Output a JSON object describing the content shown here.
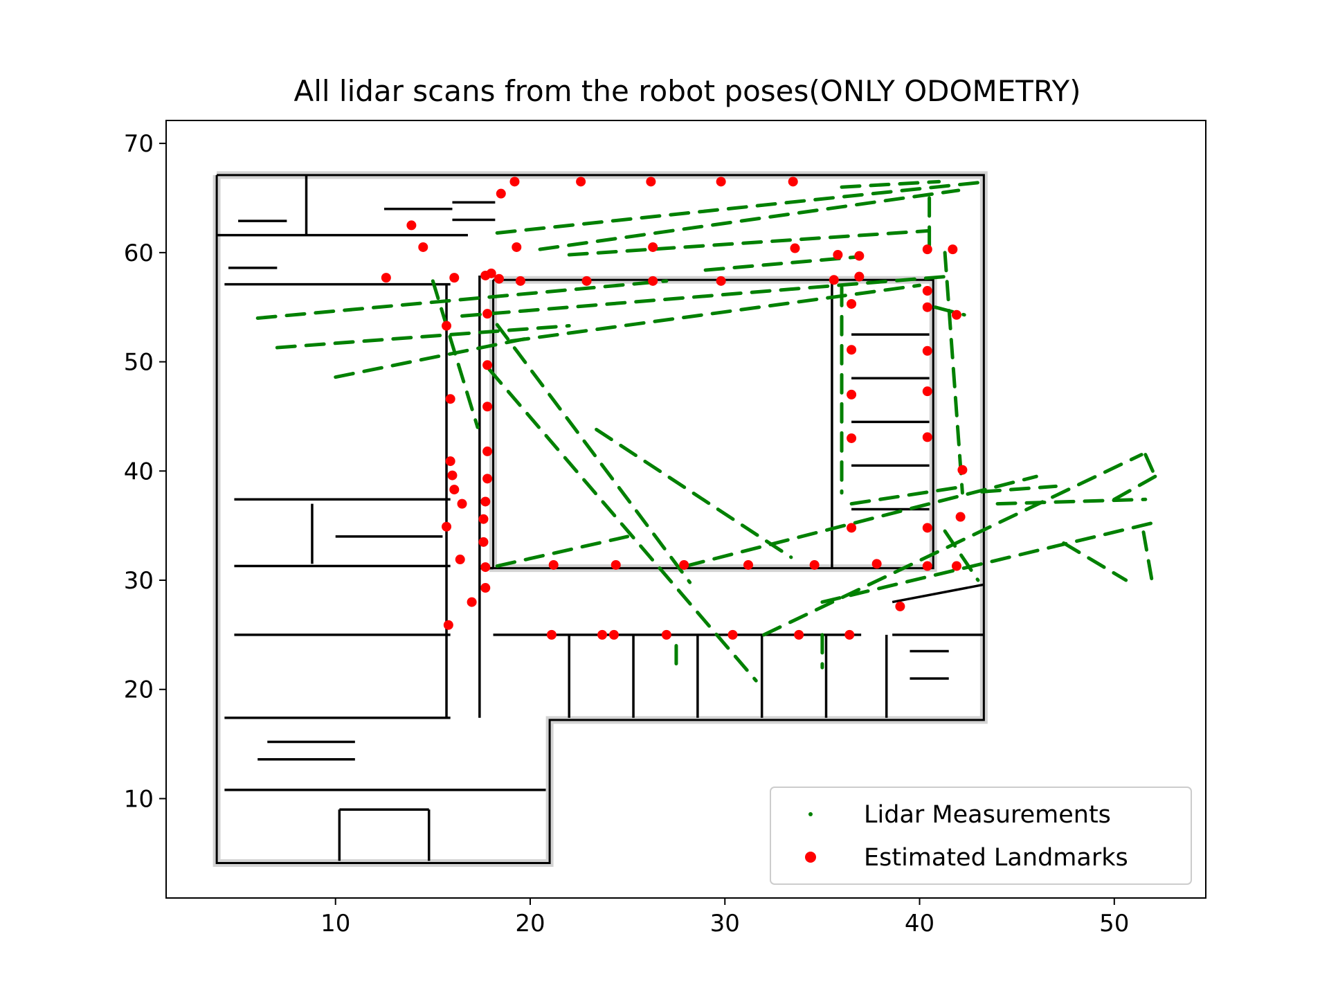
{
  "chart_data": {
    "type": "scatter",
    "title": "All lidar scans from the robot poses(ONLY ODOMETRY)",
    "xlabel": "",
    "ylabel": "",
    "xlim": [
      1.3,
      54.7
    ],
    "ylim": [
      0.9,
      72.1
    ],
    "xticks": [
      10,
      20,
      30,
      40,
      50
    ],
    "yticks": [
      10,
      20,
      30,
      40,
      50,
      60,
      70
    ],
    "grid": false,
    "legend_position": "lower-right",
    "series": [
      {
        "name": "Lidar Measurements",
        "color": "#008000",
        "marker": "small-dot",
        "segments": [
          [
            [
              18.3,
              61.8
            ],
            [
              43.5,
              66.5
            ]
          ],
          [
            [
              20.5,
              60.3
            ],
            [
              42.0,
              65.7
            ]
          ],
          [
            [
              22.0,
              59.8
            ],
            [
              40.5,
              62.0
            ]
          ],
          [
            [
              29.0,
              58.4
            ],
            [
              36.8,
              59.6
            ]
          ],
          [
            [
              16.5,
              54.2
            ],
            [
              41.3,
              57.8
            ]
          ],
          [
            [
              19.0,
              51.9
            ],
            [
              40.0,
              57.0
            ]
          ],
          [
            [
              6.0,
              54.0
            ],
            [
              27.0,
              57.4
            ]
          ],
          [
            [
              7.0,
              51.3
            ],
            [
              22.0,
              53.3
            ]
          ],
          [
            [
              10.0,
              48.6
            ],
            [
              20.0,
              52.2
            ]
          ],
          [
            [
              15.0,
              57.4
            ],
            [
              17.3,
              44.0
            ]
          ],
          [
            [
              18.3,
              53.4
            ],
            [
              28.2,
              29.8
            ]
          ],
          [
            [
              17.9,
              49.3
            ],
            [
              31.6,
              20.8
            ]
          ],
          [
            [
              23.4,
              43.8
            ],
            [
              33.4,
              32.1
            ]
          ],
          [
            [
              18.3,
              31.3
            ],
            [
              25.0,
              34.0
            ]
          ],
          [
            [
              28.0,
              31.3
            ],
            [
              46.0,
              39.5
            ]
          ],
          [
            [
              32.0,
              25.0
            ],
            [
              51.4,
              41.5
            ]
          ],
          [
            [
              35.0,
              28.0
            ],
            [
              52.1,
              35.3
            ]
          ],
          [
            [
              51.6,
              41.5
            ],
            [
              52.1,
              39.5
            ]
          ],
          [
            [
              52.1,
              39.5
            ],
            [
              49.6,
              37.0
            ]
          ],
          [
            [
              43.2,
              38.1
            ],
            [
              47.0,
              38.6
            ]
          ],
          [
            [
              44.0,
              37.0
            ],
            [
              51.6,
              37.4
            ]
          ],
          [
            [
              47.4,
              33.4
            ],
            [
              50.6,
              30.0
            ]
          ],
          [
            [
              51.5,
              34.4
            ],
            [
              52.0,
              29.3
            ]
          ],
          [
            [
              41.3,
              34.5
            ],
            [
              43.0,
              30.0
            ]
          ],
          [
            [
              36.0,
              56.8
            ],
            [
              36.0,
              38.0
            ]
          ],
          [
            [
              41.3,
              60.0
            ],
            [
              42.2,
              38.0
            ]
          ],
          [
            [
              40.5,
              65.0
            ],
            [
              40.5,
              60.0
            ]
          ],
          [
            [
              36.0,
              66.0
            ],
            [
              41.0,
              66.5
            ]
          ],
          [
            [
              40.8,
              55.0
            ],
            [
              42.3,
              54.3
            ]
          ],
          [
            [
              27.5,
              24.0
            ],
            [
              27.5,
              22.0
            ]
          ],
          [
            [
              35.0,
              25.0
            ],
            [
              35.0,
              22.0
            ]
          ],
          [
            [
              36.5,
              37.0
            ],
            [
              42.0,
              38.5
            ]
          ]
        ]
      },
      {
        "name": "Estimated Landmarks",
        "color": "#ff0000",
        "marker": "dot",
        "points": [
          [
            19.2,
            66.5
          ],
          [
            22.6,
            66.5
          ],
          [
            26.2,
            66.5
          ],
          [
            29.8,
            66.5
          ],
          [
            33.5,
            66.5
          ],
          [
            18.5,
            65.4
          ],
          [
            13.9,
            62.5
          ],
          [
            14.5,
            60.5
          ],
          [
            19.3,
            60.5
          ],
          [
            26.3,
            60.5
          ],
          [
            33.6,
            60.4
          ],
          [
            35.8,
            59.8
          ],
          [
            36.9,
            59.7
          ],
          [
            40.4,
            60.3
          ],
          [
            41.7,
            60.3
          ],
          [
            12.6,
            57.7
          ],
          [
            16.1,
            57.7
          ],
          [
            17.7,
            57.9
          ],
          [
            18.0,
            58.1
          ],
          [
            18.4,
            57.6
          ],
          [
            19.5,
            57.4
          ],
          [
            22.9,
            57.4
          ],
          [
            26.3,
            57.4
          ],
          [
            29.8,
            57.4
          ],
          [
            35.6,
            57.5
          ],
          [
            36.9,
            57.8
          ],
          [
            40.4,
            56.5
          ],
          [
            36.5,
            55.3
          ],
          [
            40.4,
            55.0
          ],
          [
            41.9,
            54.3
          ],
          [
            15.7,
            53.3
          ],
          [
            17.8,
            54.4
          ],
          [
            36.5,
            51.1
          ],
          [
            40.4,
            51.0
          ],
          [
            17.8,
            49.7
          ],
          [
            36.5,
            47.0
          ],
          [
            40.4,
            47.3
          ],
          [
            15.9,
            46.6
          ],
          [
            17.8,
            45.9
          ],
          [
            36.5,
            43.0
          ],
          [
            40.4,
            43.1
          ],
          [
            17.8,
            41.8
          ],
          [
            15.9,
            40.9
          ],
          [
            16.0,
            39.6
          ],
          [
            42.2,
            40.1
          ],
          [
            17.8,
            39.3
          ],
          [
            16.1,
            38.3
          ],
          [
            16.5,
            37.0
          ],
          [
            17.7,
            37.2
          ],
          [
            42.1,
            35.8
          ],
          [
            17.6,
            35.6
          ],
          [
            15.7,
            34.9
          ],
          [
            36.5,
            34.8
          ],
          [
            40.4,
            34.8
          ],
          [
            17.6,
            33.5
          ],
          [
            16.4,
            31.9
          ],
          [
            17.7,
            31.2
          ],
          [
            21.2,
            31.4
          ],
          [
            24.4,
            31.4
          ],
          [
            27.9,
            31.4
          ],
          [
            31.2,
            31.4
          ],
          [
            34.6,
            31.4
          ],
          [
            37.8,
            31.5
          ],
          [
            40.4,
            31.3
          ],
          [
            41.9,
            31.3
          ],
          [
            17.7,
            29.3
          ],
          [
            17.0,
            28.0
          ],
          [
            39.0,
            27.6
          ],
          [
            15.8,
            25.9
          ],
          [
            21.1,
            25.0
          ],
          [
            23.7,
            25.0
          ],
          [
            24.3,
            25.0
          ],
          [
            27.0,
            25.0
          ],
          [
            30.4,
            25.0
          ],
          [
            33.8,
            25.0
          ],
          [
            36.4,
            25.0
          ]
        ]
      }
    ],
    "floorplan": {
      "color": "#000000",
      "wall_fill": "#d3d3d3",
      "outlines": [
        [
          [
            3.9,
            67.1
          ],
          [
            43.3,
            67.1
          ],
          [
            43.3,
            17.2
          ],
          [
            21.0,
            17.2
          ],
          [
            21.0,
            4.1
          ],
          [
            3.9,
            4.1
          ],
          [
            3.9,
            67.1
          ]
        ],
        [
          [
            18.1,
            57.5
          ],
          [
            40.7,
            57.5
          ],
          [
            40.7,
            31.1
          ],
          [
            18.1,
            31.1
          ],
          [
            18.1,
            57.5
          ]
        ]
      ],
      "walls": [
        [
          [
            3.9,
            61.6
          ],
          [
            16.8,
            61.6
          ]
        ],
        [
          [
            4.3,
            57.1
          ],
          [
            15.9,
            57.1
          ]
        ],
        [
          [
            4.8,
            37.4
          ],
          [
            15.9,
            37.4
          ]
        ],
        [
          [
            4.8,
            31.3
          ],
          [
            15.9,
            31.3
          ]
        ],
        [
          [
            4.8,
            25.0
          ],
          [
            15.9,
            25.0
          ]
        ],
        [
          [
            4.3,
            17.4
          ],
          [
            15.9,
            17.4
          ]
        ],
        [
          [
            4.3,
            10.8
          ],
          [
            20.8,
            10.8
          ]
        ],
        [
          [
            15.7,
            57.1
          ],
          [
            15.7,
            17.4
          ]
        ],
        [
          [
            17.4,
            57.9
          ],
          [
            17.4,
            17.4
          ]
        ],
        [
          [
            17.4,
            31.1
          ],
          [
            18.1,
            31.1
          ]
        ],
        [
          [
            18.1,
            25.0
          ],
          [
            37.0,
            25.0
          ]
        ],
        [
          [
            35.5,
            57.5
          ],
          [
            35.5,
            31.1
          ]
        ],
        [
          [
            36.5,
            52.5
          ],
          [
            40.5,
            52.5
          ]
        ],
        [
          [
            36.5,
            48.5
          ],
          [
            40.5,
            48.5
          ]
        ],
        [
          [
            36.5,
            44.5
          ],
          [
            40.5,
            44.5
          ]
        ],
        [
          [
            36.5,
            40.5
          ],
          [
            40.5,
            40.5
          ]
        ],
        [
          [
            36.5,
            36.5
          ],
          [
            40.5,
            36.5
          ]
        ],
        [
          [
            22.0,
            25.0
          ],
          [
            22.0,
            17.4
          ]
        ],
        [
          [
            25.3,
            25.0
          ],
          [
            25.3,
            17.4
          ]
        ],
        [
          [
            28.6,
            25.0
          ],
          [
            28.6,
            17.4
          ]
        ],
        [
          [
            31.9,
            25.0
          ],
          [
            31.9,
            17.4
          ]
        ],
        [
          [
            35.2,
            25.0
          ],
          [
            35.2,
            17.4
          ]
        ],
        [
          [
            38.3,
            25.0
          ],
          [
            38.3,
            17.4
          ]
        ],
        [
          [
            38.6,
            25.0
          ],
          [
            43.3,
            25.0
          ]
        ],
        [
          [
            39.5,
            23.5
          ],
          [
            41.5,
            23.5
          ]
        ],
        [
          [
            39.5,
            21.0
          ],
          [
            41.5,
            21.0
          ]
        ],
        [
          [
            38.6,
            28.0
          ],
          [
            43.3,
            29.6
          ]
        ],
        [
          [
            10.0,
            34.0
          ],
          [
            15.5,
            34.0
          ]
        ],
        [
          [
            8.8,
            37.0
          ],
          [
            8.8,
            31.5
          ]
        ],
        [
          [
            10.2,
            9.0
          ],
          [
            10.2,
            4.3
          ]
        ],
        [
          [
            14.8,
            9.0
          ],
          [
            14.8,
            4.3
          ]
        ],
        [
          [
            10.2,
            9.0
          ],
          [
            14.8,
            9.0
          ]
        ],
        [
          [
            6.5,
            15.2
          ],
          [
            11.0,
            15.2
          ]
        ],
        [
          [
            6.0,
            13.6
          ],
          [
            11.0,
            13.6
          ]
        ],
        [
          [
            8.5,
            61.6
          ],
          [
            8.5,
            67.1
          ]
        ],
        [
          [
            12.5,
            64.0
          ],
          [
            16.0,
            64.0
          ]
        ],
        [
          [
            16.0,
            63.0
          ],
          [
            18.2,
            63.0
          ]
        ],
        [
          [
            16.0,
            64.6
          ],
          [
            18.2,
            64.6
          ]
        ],
        [
          [
            5.0,
            62.9
          ],
          [
            7.5,
            62.9
          ]
        ],
        [
          [
            4.5,
            58.6
          ],
          [
            7.0,
            58.6
          ]
        ]
      ]
    }
  }
}
